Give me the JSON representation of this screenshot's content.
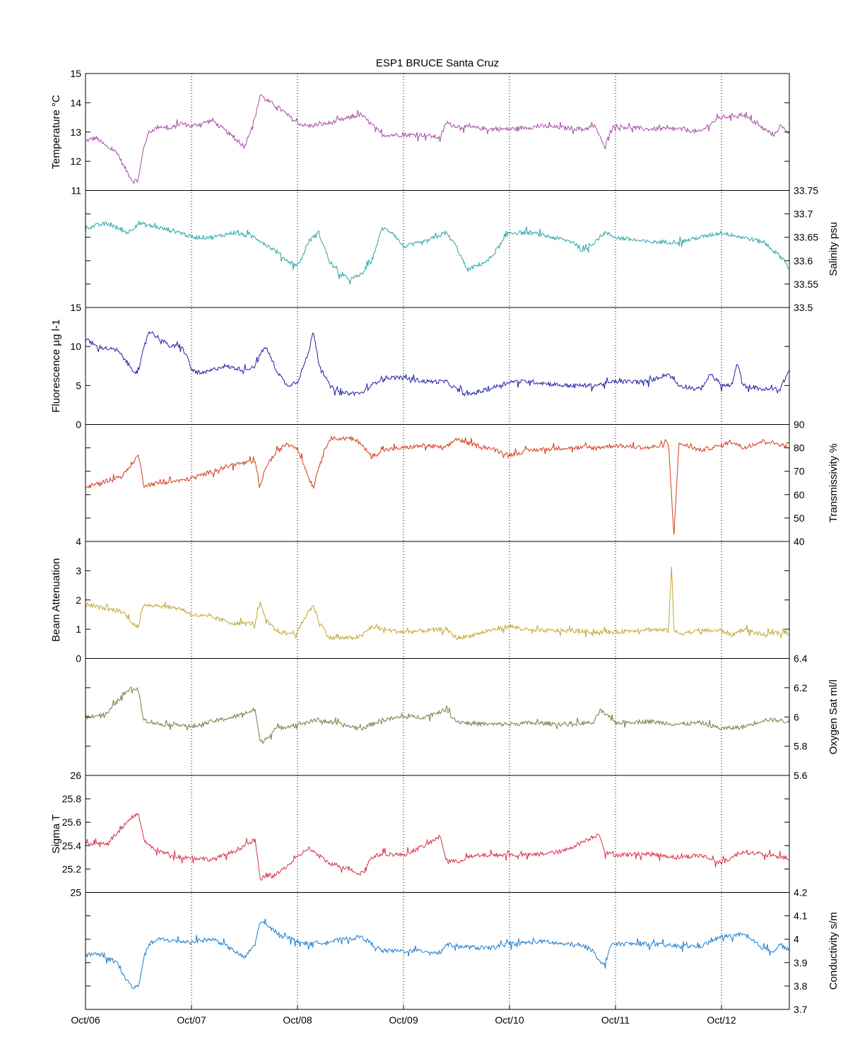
{
  "chart_data": {
    "type": "line",
    "title": "ESP1 BRUCE Santa Cruz",
    "x": {
      "tick_labels": [
        "Oct/06",
        "Oct/07",
        "Oct/08",
        "Oct/09",
        "Oct/10",
        "Oct/11",
        "Oct/12"
      ],
      "range_days": [
        0,
        6.64
      ],
      "grid": "dotted vertical at each day"
    },
    "panels": [
      {
        "id": "temperature",
        "ylabel": "Temperature °C",
        "axis_side": "left",
        "ylim": [
          11,
          15
        ],
        "ticks": [
          11,
          12,
          13,
          14,
          15
        ],
        "tick_labels": [
          "11",
          "12",
          "13",
          "14",
          "15"
        ],
        "color": "#a64ca6",
        "series": {
          "t": [
            0,
            0.1,
            0.2,
            0.3,
            0.35,
            0.4,
            0.45,
            0.5,
            0.55,
            0.6,
            0.7,
            0.8,
            0.9,
            1.0,
            1.2,
            1.3,
            1.4,
            1.5,
            1.6,
            1.65,
            1.7,
            1.8,
            1.9,
            2.0,
            2.1,
            2.3,
            2.6,
            2.8,
            3.0,
            3.2,
            3.35,
            3.4,
            3.5,
            3.8,
            4.0,
            4.3,
            4.7,
            4.8,
            4.85,
            4.9,
            4.95,
            5.0,
            5.3,
            5.6,
            5.8,
            5.9,
            6.0,
            6.2,
            6.4,
            6.5,
            6.55,
            6.64
          ],
          "v": [
            12.7,
            12.8,
            12.5,
            12.3,
            11.9,
            11.6,
            11.3,
            11.4,
            12.5,
            13.0,
            13.2,
            13.1,
            13.3,
            13.2,
            13.4,
            13.1,
            12.8,
            12.5,
            13.5,
            14.3,
            14.1,
            13.9,
            13.6,
            13.3,
            13.2,
            13.3,
            13.6,
            12.9,
            12.9,
            12.9,
            12.8,
            13.3,
            13.2,
            13.1,
            13.1,
            13.2,
            13.1,
            13.2,
            12.9,
            12.4,
            13.1,
            13.2,
            13.1,
            13.1,
            13.0,
            13.3,
            13.5,
            13.6,
            13.1,
            12.9,
            13.2,
            13.0
          ]
        }
      },
      {
        "id": "salinity",
        "ylabel": "Salinity psu",
        "axis_side": "right",
        "ylim": [
          33.5,
          33.75
        ],
        "ticks": [
          33.5,
          33.55,
          33.6,
          33.65,
          33.7,
          33.75
        ],
        "tick_labels": [
          "33.5",
          "33.55",
          "33.6",
          "33.65",
          "33.7",
          "33.75"
        ],
        "color": "#2aa6a6",
        "series": {
          "t": [
            0,
            0.2,
            0.4,
            0.5,
            0.7,
            0.9,
            1.0,
            1.2,
            1.4,
            1.6,
            1.8,
            1.9,
            2.0,
            2.05,
            2.1,
            2.2,
            2.3,
            2.4,
            2.5,
            2.6,
            2.7,
            2.8,
            2.9,
            3.0,
            3.2,
            3.4,
            3.5,
            3.6,
            3.8,
            4.0,
            4.2,
            4.4,
            4.6,
            4.7,
            4.8,
            4.9,
            5.0,
            5.3,
            5.6,
            5.8,
            6.0,
            6.2,
            6.4,
            6.5,
            6.6,
            6.64
          ],
          "v": [
            33.67,
            33.68,
            33.66,
            33.68,
            33.67,
            33.66,
            33.65,
            33.65,
            33.66,
            33.65,
            33.62,
            33.6,
            33.59,
            33.61,
            33.64,
            33.66,
            33.6,
            33.57,
            33.56,
            33.57,
            33.6,
            33.67,
            33.66,
            33.63,
            33.64,
            33.66,
            33.63,
            33.58,
            33.6,
            33.66,
            33.66,
            33.65,
            33.64,
            33.62,
            33.64,
            33.66,
            33.65,
            33.64,
            33.64,
            33.65,
            33.66,
            33.65,
            33.64,
            33.62,
            33.6,
            33.58
          ]
        }
      },
      {
        "id": "fluorescence",
        "ylabel": "Fluorescence µg l-1",
        "axis_side": "left",
        "ylim": [
          0,
          15
        ],
        "ticks": [
          0,
          5,
          10,
          15
        ],
        "tick_labels": [
          "0",
          "5",
          "10",
          "15"
        ],
        "color": "#2020a6",
        "series": {
          "t": [
            0,
            0.1,
            0.3,
            0.45,
            0.5,
            0.55,
            0.6,
            0.7,
            0.8,
            0.9,
            0.95,
            1.0,
            1.1,
            1.2,
            1.3,
            1.5,
            1.6,
            1.65,
            1.7,
            1.8,
            1.9,
            2.0,
            2.1,
            2.15,
            2.2,
            2.3,
            2.4,
            2.6,
            2.7,
            2.8,
            3.0,
            3.2,
            3.4,
            3.5,
            3.6,
            3.8,
            4.0,
            4.2,
            4.5,
            4.8,
            5.0,
            5.3,
            5.5,
            5.6,
            5.8,
            5.9,
            6.0,
            6.1,
            6.15,
            6.2,
            6.4,
            6.55,
            6.64
          ],
          "v": [
            11,
            10,
            9.5,
            7,
            6.5,
            10,
            12,
            11,
            10,
            10,
            9,
            7,
            6.5,
            7,
            7.5,
            7,
            7.5,
            9,
            10,
            7,
            5,
            5.5,
            9,
            12,
            8,
            5,
            4,
            4,
            5,
            6,
            6,
            5.5,
            5.5,
            4.5,
            3.8,
            4.5,
            5.5,
            5.5,
            5,
            5,
            5.5,
            5.5,
            6.5,
            5,
            4.5,
            6.5,
            5,
            5,
            8,
            5,
            4.5,
            4.5,
            7
          ]
        }
      },
      {
        "id": "transmissivity",
        "ylabel": "Transmissivity %",
        "axis_side": "right",
        "ylim": [
          40,
          90
        ],
        "ticks": [
          40,
          50,
          60,
          70,
          80,
          90
        ],
        "tick_labels": [
          "40",
          "50",
          "60",
          "70",
          "80",
          "90"
        ],
        "color": "#d03c1c",
        "series": {
          "t": [
            0,
            0.2,
            0.35,
            0.45,
            0.5,
            0.55,
            0.7,
            0.9,
            1.0,
            1.2,
            1.4,
            1.6,
            1.65,
            1.7,
            1.8,
            1.9,
            2.0,
            2.1,
            2.15,
            2.2,
            2.3,
            2.5,
            2.6,
            2.7,
            2.8,
            3.0,
            3.2,
            3.4,
            3.5,
            3.6,
            3.8,
            4.0,
            4.2,
            4.5,
            4.8,
            5.0,
            5.3,
            5.45,
            5.5,
            5.55,
            5.6,
            5.8,
            6.0,
            6.1,
            6.2,
            6.4,
            6.6,
            6.64
          ],
          "v": [
            63,
            66,
            68,
            74,
            77,
            64,
            65,
            66,
            67,
            70,
            73,
            74,
            63,
            72,
            78,
            82,
            80,
            68,
            63,
            72,
            84,
            84,
            82,
            76,
            79,
            80,
            81,
            80,
            84,
            82,
            80,
            77,
            79,
            80,
            80,
            81,
            80,
            81,
            82,
            43,
            82,
            79,
            81,
            83,
            80,
            83,
            81,
            82
          ]
        }
      },
      {
        "id": "beam_attenuation",
        "ylabel": "Beam Attenuation",
        "axis_side": "left",
        "ylim": [
          0,
          4
        ],
        "ticks": [
          0,
          1,
          2,
          3,
          4
        ],
        "tick_labels": [
          "0",
          "1",
          "2",
          "3",
          "4"
        ],
        "color": "#c0a830",
        "series": {
          "t": [
            0,
            0.2,
            0.35,
            0.45,
            0.5,
            0.55,
            0.7,
            0.9,
            1.0,
            1.2,
            1.4,
            1.6,
            1.65,
            1.7,
            1.8,
            1.9,
            2.0,
            2.1,
            2.15,
            2.2,
            2.3,
            2.5,
            2.6,
            2.7,
            2.8,
            3.0,
            3.2,
            3.4,
            3.5,
            3.6,
            3.8,
            4.0,
            4.2,
            4.5,
            4.8,
            5.0,
            5.3,
            5.5,
            5.53,
            5.55,
            5.6,
            5.8,
            6.0,
            6.1,
            6.2,
            6.4,
            6.6,
            6.64
          ],
          "v": [
            1.85,
            1.7,
            1.6,
            1.2,
            1.05,
            1.85,
            1.8,
            1.7,
            1.5,
            1.4,
            1.2,
            1.2,
            1.9,
            1.3,
            0.95,
            0.85,
            0.9,
            1.6,
            1.8,
            1.3,
            0.7,
            0.7,
            0.75,
            1.1,
            1.0,
            0.9,
            0.95,
            1.0,
            0.7,
            0.75,
            0.95,
            1.1,
            0.95,
            0.95,
            0.9,
            0.9,
            1.0,
            0.95,
            3.3,
            0.95,
            0.85,
            0.95,
            0.95,
            0.8,
            1.0,
            0.8,
            0.9,
            0.85
          ]
        }
      },
      {
        "id": "oxygen_sat",
        "ylabel": "Oxygen Sat ml/l",
        "axis_side": "right",
        "ylim": [
          5.6,
          6.4
        ],
        "ticks": [
          5.6,
          5.8,
          6.0,
          6.2,
          6.4
        ],
        "tick_labels": [
          "5.6",
          "5.8",
          "6",
          "6.2",
          "6.4"
        ],
        "color": "#7a7a40",
        "series": {
          "t": [
            0,
            0.2,
            0.35,
            0.45,
            0.5,
            0.55,
            0.7,
            0.9,
            1.0,
            1.2,
            1.4,
            1.6,
            1.65,
            1.7,
            1.8,
            2.0,
            2.2,
            2.4,
            2.6,
            2.8,
            3.0,
            3.2,
            3.4,
            3.5,
            3.6,
            3.8,
            4.0,
            4.2,
            4.5,
            4.8,
            4.85,
            5.0,
            5.3,
            5.6,
            5.8,
            6.0,
            6.2,
            6.4,
            6.5,
            6.6,
            6.64
          ],
          "v": [
            6.0,
            6.02,
            6.15,
            6.2,
            6.18,
            5.98,
            5.95,
            5.95,
            5.93,
            5.97,
            6.0,
            6.05,
            5.82,
            5.85,
            5.92,
            5.95,
            5.98,
            5.95,
            5.92,
            5.98,
            6.0,
            6.0,
            6.05,
            5.97,
            5.96,
            5.95,
            5.95,
            5.96,
            5.95,
            5.96,
            6.05,
            5.96,
            5.97,
            5.95,
            5.96,
            5.92,
            5.93,
            5.98,
            5.98,
            5.97,
            5.98
          ]
        }
      },
      {
        "id": "sigma_t",
        "ylabel": "Sigma T",
        "axis_side": "left",
        "ylim": [
          25,
          26
        ],
        "ticks": [
          25,
          25.2,
          25.4,
          25.6,
          25.8,
          26
        ],
        "tick_labels": [
          "25",
          "25.2",
          "25.4",
          "25.6",
          "25.8",
          "26"
        ],
        "color": "#d8304c",
        "series": {
          "t": [
            0,
            0.2,
            0.35,
            0.45,
            0.5,
            0.55,
            0.6,
            0.7,
            0.9,
            1.0,
            1.2,
            1.4,
            1.6,
            1.65,
            1.7,
            1.8,
            2.0,
            2.1,
            2.3,
            2.5,
            2.6,
            2.7,
            2.8,
            3.0,
            3.2,
            3.35,
            3.4,
            3.5,
            3.6,
            3.8,
            4.0,
            4.2,
            4.5,
            4.8,
            4.85,
            4.9,
            5.0,
            5.3,
            5.6,
            5.8,
            6.0,
            6.2,
            6.4,
            6.6,
            6.64
          ],
          "v": [
            25.42,
            25.42,
            25.55,
            25.65,
            25.68,
            25.45,
            25.4,
            25.35,
            25.3,
            25.3,
            25.28,
            25.35,
            25.45,
            25.1,
            25.15,
            25.15,
            25.3,
            25.38,
            25.25,
            25.2,
            25.15,
            25.3,
            25.33,
            25.32,
            25.4,
            25.48,
            25.28,
            25.26,
            25.3,
            25.32,
            25.32,
            25.32,
            25.35,
            25.48,
            25.5,
            25.34,
            25.32,
            25.33,
            25.3,
            25.32,
            25.25,
            25.35,
            25.32,
            25.3,
            25.28
          ]
        }
      },
      {
        "id": "conductivity",
        "ylabel": "Conductivity s/m",
        "axis_side": "right",
        "ylim": [
          3.7,
          4.2
        ],
        "ticks": [
          3.7,
          3.8,
          3.9,
          4.0,
          4.1,
          4.2
        ],
        "tick_labels": [
          "3.7",
          "3.8",
          "3.9",
          "4",
          "4.1",
          "4.2"
        ],
        "color": "#1c7ed0",
        "series": {
          "t": [
            0,
            0.1,
            0.2,
            0.3,
            0.35,
            0.4,
            0.45,
            0.5,
            0.55,
            0.6,
            0.7,
            0.9,
            1.0,
            1.2,
            1.3,
            1.4,
            1.5,
            1.6,
            1.65,
            1.7,
            1.8,
            2.0,
            2.1,
            2.3,
            2.6,
            2.8,
            3.0,
            3.2,
            3.35,
            3.4,
            3.5,
            3.8,
            4.0,
            4.3,
            4.7,
            4.8,
            4.85,
            4.9,
            4.95,
            5.0,
            5.3,
            5.6,
            5.8,
            6.0,
            6.2,
            6.4,
            6.5,
            6.55,
            6.64
          ],
          "v": [
            3.93,
            3.94,
            3.92,
            3.9,
            3.85,
            3.82,
            3.79,
            3.8,
            3.92,
            3.98,
            4.0,
            3.99,
            3.99,
            4.0,
            3.98,
            3.95,
            3.92,
            3.98,
            4.08,
            4.06,
            4.03,
            3.99,
            3.98,
            3.99,
            4.01,
            3.95,
            3.95,
            3.95,
            3.94,
            3.98,
            3.97,
            3.96,
            3.98,
            3.99,
            3.97,
            3.95,
            3.9,
            3.89,
            3.97,
            3.98,
            3.98,
            3.97,
            3.97,
            4.01,
            4.02,
            3.96,
            3.95,
            3.98,
            3.95
          ]
        }
      }
    ]
  }
}
